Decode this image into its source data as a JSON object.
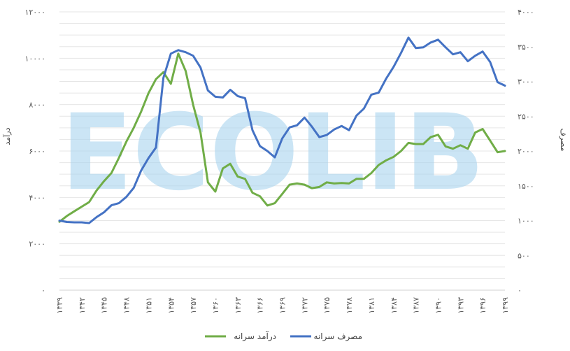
{
  "chart_data": {
    "type": "line",
    "y_left_label": "درآمد",
    "y_right_label": "مصرف",
    "y_left_ticks": [
      "۰",
      "۲۰۰۰",
      "۴۰۰۰",
      "۶۰۰۰",
      "۸۰۰۰",
      "۱۰۰۰۰",
      "۱۲۰۰۰"
    ],
    "y_right_ticks": [
      "۰",
      "۵۰۰",
      "۱۰۰۰",
      "۱۵۰۰",
      "۲۰۰۰",
      "۲۵۰۰",
      "۳۰۰۰",
      "۳۵۰۰",
      "۴۰۰۰"
    ],
    "y_left_range": [
      0,
      12000
    ],
    "y_right_range": [
      0,
      4000
    ],
    "x_tick_labels": [
      "۱۳۳۹",
      "۱۳۴۲",
      "۱۳۴۵",
      "۱۳۴۸",
      "۱۳۵۱",
      "۱۳۵۴",
      "۱۳۵۷",
      "۱۳۶۰",
      "۱۳۶۳",
      "۱۳۶۶",
      "۱۳۶۹",
      "۱۳۷۲",
      "۱۳۷۵",
      "۱۳۷۸",
      "۱۳۸۱",
      "۱۳۸۴",
      "۱۳۸۷",
      "۱۳۹۰",
      "۱۳۹۳",
      "۱۳۹۶",
      "۱۳۹۹"
    ],
    "x": [
      1339,
      1340,
      1341,
      1342,
      1343,
      1344,
      1345,
      1346,
      1347,
      1348,
      1349,
      1350,
      1351,
      1352,
      1353,
      1354,
      1355,
      1356,
      1357,
      1358,
      1359,
      1360,
      1361,
      1362,
      1363,
      1364,
      1365,
      1366,
      1367,
      1368,
      1369,
      1370,
      1371,
      1372,
      1373,
      1374,
      1375,
      1376,
      1377,
      1378,
      1379,
      1380,
      1381,
      1382,
      1383,
      1384,
      1385,
      1386,
      1387,
      1388,
      1389,
      1390,
      1391,
      1392,
      1393,
      1394,
      1395,
      1396,
      1397,
      1398,
      1399
    ],
    "series": [
      {
        "name": "درآمد سرانه",
        "axis": "left",
        "color": "#70ad47",
        "values": [
          2950,
          3200,
          3400,
          3600,
          3800,
          4300,
          4700,
          5050,
          5700,
          6400,
          7000,
          7700,
          8500,
          9100,
          9400,
          8900,
          10200,
          9450,
          8000,
          6800,
          4650,
          4250,
          5250,
          5450,
          4900,
          4800,
          4200,
          4050,
          3650,
          3750,
          4150,
          4550,
          4600,
          4550,
          4400,
          4450,
          4650,
          4600,
          4620,
          4600,
          4800,
          4800,
          5050,
          5400,
          5600,
          5750,
          6000,
          6350,
          6300,
          6300,
          6600,
          6700,
          6200,
          6100,
          6250,
          6100,
          6800,
          6950,
          6450,
          5950,
          6000
        ]
      },
      {
        "name": "مصرف سرانه",
        "axis": "right",
        "color": "#4472c4",
        "values": [
          1000,
          980,
          975,
          975,
          965,
          1050,
          1120,
          1220,
          1250,
          1340,
          1470,
          1720,
          1900,
          2050,
          3050,
          3400,
          3450,
          3420,
          3370,
          3200,
          2870,
          2780,
          2770,
          2880,
          2790,
          2760,
          2300,
          2070,
          2000,
          1910,
          2180,
          2340,
          2370,
          2480,
          2350,
          2200,
          2230,
          2310,
          2360,
          2300,
          2510,
          2610,
          2810,
          2840,
          3040,
          3210,
          3410,
          3630,
          3480,
          3490,
          3560,
          3600,
          3490,
          3390,
          3420,
          3290,
          3370,
          3430,
          3280,
          2990,
          2940
        ]
      }
    ],
    "legend_position": "bottom",
    "grid": true
  },
  "watermark": "ECOLIB"
}
